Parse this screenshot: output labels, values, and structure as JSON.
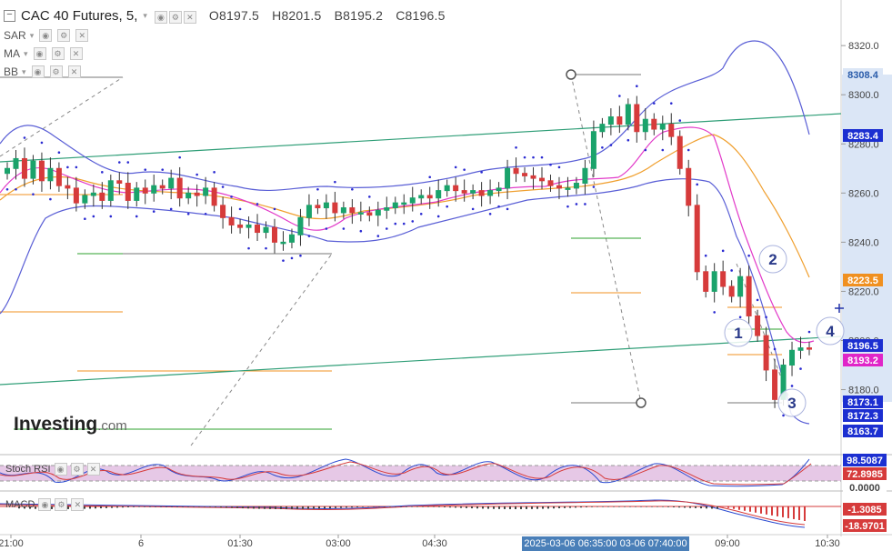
{
  "header": {
    "symbol": "CAC 40 Futures, 5,",
    "open": "O8197.5",
    "high": "H8201.5",
    "low": "B8195.2",
    "close": "C8196.5"
  },
  "indicators": [
    "SAR",
    "MA",
    "BB"
  ],
  "subpanes": {
    "stoch_label": "Stoch RSI",
    "macd_label": "MACD"
  },
  "logo": {
    "name": "Investing",
    "suffix": ".com"
  },
  "crosshair_time_label": "2025-03-06 06:35:00  03-06 07:40:00",
  "colors": {
    "bull": "#1aa36b",
    "bear": "#d63b3b",
    "sar": "#2a2ad1",
    "bb": "#5a5fd6",
    "ma_fast": "#e23bc9",
    "ma_slow": "#f0a030",
    "trend": "#2f9e77",
    "level_green": "#2ea02e",
    "level_orange": "#f09020",
    "axis_highlight": "#dbe6f6",
    "stoch_fill": "#e6c8e6"
  },
  "annotations": [
    "1",
    "2",
    "3",
    "4"
  ],
  "chart_data": {
    "type": "candlestick",
    "y_axis": {
      "ticks": [
        "8320.0",
        "8300.0",
        "8280.0",
        "8260.0",
        "8240.0",
        "8220.0",
        "8200.0",
        "8180.0"
      ],
      "ylim": [
        8158,
        8333
      ]
    },
    "x_ticks": [
      "21:00",
      "6",
      "01:30",
      "03:00",
      "04:30",
      "09:00",
      "10:30"
    ],
    "price_labels": [
      {
        "value": 8308.4,
        "text": "8308.4",
        "color": "#dbe6f6",
        "text_color": "#2a5caa"
      },
      {
        "value": 8283.4,
        "text": "8283.4",
        "color": "#1c2fd1",
        "text_color": "#ffffff"
      },
      {
        "value": 8223.5,
        "text": "8223.5",
        "color": "#f09020",
        "text_color": "#ffffff"
      },
      {
        "value": 8196.5,
        "text": "8196.5",
        "color": "#1c2fd1",
        "text_color": "#ffffff"
      },
      {
        "value": 8193.2,
        "text": "8193.2",
        "color": "#e025c8",
        "text_color": "#ffffff"
      },
      {
        "value": 8173.1,
        "text": "8173.1",
        "color": "#1c2fd1",
        "text_color": "#ffffff"
      },
      {
        "value": 8172.3,
        "text": "8172.3",
        "color": "#1c2fd1",
        "text_color": "#ffffff"
      },
      {
        "value": 8163.7,
        "text": "8163.7",
        "color": "#1c2fd1",
        "text_color": "#ffffff"
      }
    ],
    "stoch_labels": [
      {
        "text": "98.5087",
        "color": "#1c2fd1"
      },
      {
        "text": "72.8985",
        "color": "#d63b3b"
      },
      {
        "text": "0.0000",
        "color": "#ffffff"
      }
    ],
    "macd_labels": [
      {
        "text": "-1.3085",
        "color": "#d63b3b"
      },
      {
        "text": "-18.9701",
        "color": "#d63b3b"
      }
    ],
    "close": [
      8270,
      8274,
      8266,
      8273,
      8265,
      8270,
      8263,
      8262,
      8256,
      8259,
      8260,
      8257,
      8265,
      8264,
      8257,
      8262,
      8260,
      8263,
      8262,
      8266,
      8258,
      8260,
      8259,
      8262,
      8255,
      8250,
      8247,
      8246,
      8247,
      8244,
      8246,
      8240,
      8240,
      8243,
      8250,
      8255,
      8254,
      8256,
      8252,
      8254,
      8252,
      8252,
      8251,
      8253,
      8254,
      8256,
      8256,
      8258,
      8259,
      8258,
      8261,
      8263,
      8261,
      8260,
      8261,
      8259,
      8261,
      8262,
      8270,
      8268,
      8267,
      8266,
      8265,
      8263,
      8262,
      8262,
      8264,
      8270,
      8285,
      8288,
      8291,
      8288,
      8296,
      8285,
      8290,
      8286,
      8288,
      8283,
      8270,
      8255,
      8228,
      8220,
      8228,
      8222,
      8218,
      8226,
      8210,
      8202,
      8188,
      8176,
      8190,
      8196,
      8197,
      8196.5
    ]
  }
}
